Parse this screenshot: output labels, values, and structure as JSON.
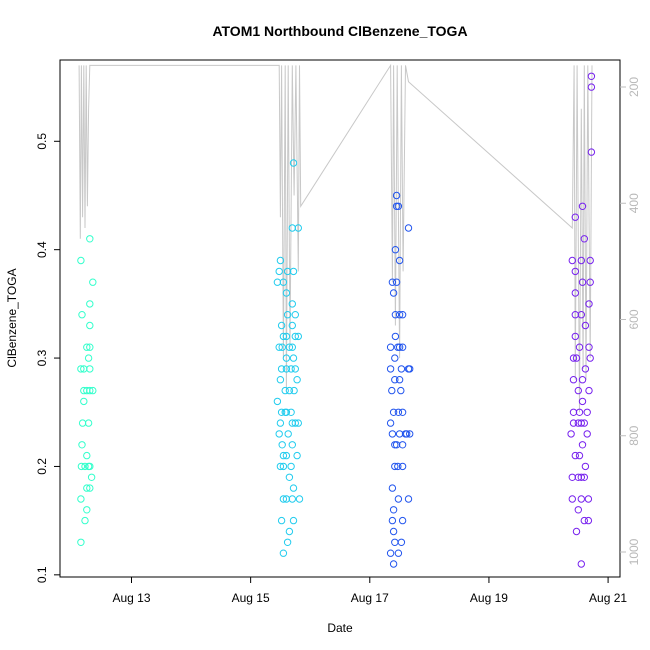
{
  "chart_data": {
    "type": "scatter",
    "title": "ATOM1 Northbound ClBenzene_TOGA",
    "xlabel": "Date",
    "ylabel": "ClBenzene_TOGA",
    "x_unit": "days since 2016-08-12 00:00",
    "xlim": [
      11.8,
      21.2
    ],
    "ylim": [
      0.098,
      0.575
    ],
    "x_ticks": [
      {
        "value": 13,
        "label": "Aug 13"
      },
      {
        "value": 15,
        "label": "Aug 15"
      },
      {
        "value": 17,
        "label": "Aug 17"
      },
      {
        "value": 19,
        "label": "Aug 19"
      },
      {
        "value": 21,
        "label": "Aug 21"
      }
    ],
    "y_ticks": [
      {
        "value": 0.1,
        "label": "0.1"
      },
      {
        "value": 0.2,
        "label": "0.2"
      },
      {
        "value": 0.3,
        "label": "0.3"
      },
      {
        "value": 0.4,
        "label": "0.4"
      },
      {
        "value": 0.5,
        "label": "0.5"
      }
    ],
    "y2_ticks": [
      {
        "value": 200,
        "label": "200"
      },
      {
        "value": 400,
        "label": "400"
      },
      {
        "value": 600,
        "label": "600"
      },
      {
        "value": 800,
        "label": "800"
      },
      {
        "value": 1000,
        "label": "1000"
      }
    ],
    "y2_reversed": true,
    "y2_color": "#bebebe",
    "point_color_scale": [
      "#00ffff",
      "#8000ff"
    ],
    "grid": false,
    "legend": "none",
    "series": [
      {
        "color": "#33ffcc",
        "points": [
          [
            12.15,
            0.13
          ],
          [
            12.15,
            0.17
          ],
          [
            12.16,
            0.2
          ],
          [
            12.17,
            0.22
          ],
          [
            12.18,
            0.24
          ],
          [
            12.2,
            0.26
          ],
          [
            12.2,
            0.27
          ],
          [
            12.15,
            0.29
          ],
          [
            12.2,
            0.29
          ],
          [
            12.17,
            0.34
          ],
          [
            12.15,
            0.39
          ],
          [
            12.25,
            0.16
          ],
          [
            12.3,
            0.2
          ],
          [
            12.22,
            0.2
          ],
          [
            12.25,
            0.18
          ],
          [
            12.3,
            0.18
          ],
          [
            12.25,
            0.21
          ],
          [
            12.25,
            0.27
          ],
          [
            12.3,
            0.27
          ],
          [
            12.25,
            0.31
          ],
          [
            12.3,
            0.31
          ],
          [
            12.28,
            0.24
          ],
          [
            12.3,
            0.29
          ],
          [
            12.28,
            0.3
          ],
          [
            12.3,
            0.33
          ],
          [
            12.3,
            0.35
          ],
          [
            12.35,
            0.27
          ],
          [
            12.33,
            0.19
          ],
          [
            12.35,
            0.37
          ],
          [
            12.3,
            0.41
          ],
          [
            12.22,
            0.15
          ],
          [
            12.28,
            0.2
          ]
        ]
      },
      {
        "color": "#22ccee",
        "points": [
          [
            15.45,
            0.26
          ],
          [
            15.45,
            0.37
          ],
          [
            15.48,
            0.31
          ],
          [
            15.48,
            0.38
          ],
          [
            15.5,
            0.39
          ],
          [
            15.52,
            0.33
          ],
          [
            15.55,
            0.37
          ],
          [
            15.5,
            0.28
          ],
          [
            15.52,
            0.29
          ],
          [
            15.53,
            0.31
          ],
          [
            15.55,
            0.32
          ],
          [
            15.5,
            0.24
          ],
          [
            15.52,
            0.25
          ],
          [
            15.55,
            0.21
          ],
          [
            15.53,
            0.22
          ],
          [
            15.5,
            0.2
          ],
          [
            15.55,
            0.2
          ],
          [
            15.55,
            0.17
          ],
          [
            15.52,
            0.15
          ],
          [
            15.55,
            0.12
          ],
          [
            15.58,
            0.27
          ],
          [
            15.6,
            0.29
          ],
          [
            15.6,
            0.3
          ],
          [
            15.6,
            0.32
          ],
          [
            15.62,
            0.34
          ],
          [
            15.6,
            0.36
          ],
          [
            15.62,
            0.38
          ],
          [
            15.6,
            0.25
          ],
          [
            15.63,
            0.23
          ],
          [
            15.6,
            0.21
          ],
          [
            15.65,
            0.19
          ],
          [
            15.6,
            0.17
          ],
          [
            15.62,
            0.13
          ],
          [
            15.65,
            0.14
          ],
          [
            15.68,
            0.29
          ],
          [
            15.7,
            0.31
          ],
          [
            15.7,
            0.33
          ],
          [
            15.7,
            0.35
          ],
          [
            15.72,
            0.38
          ],
          [
            15.7,
            0.42
          ],
          [
            15.72,
            0.48
          ],
          [
            15.68,
            0.25
          ],
          [
            15.7,
            0.24
          ],
          [
            15.7,
            0.22
          ],
          [
            15.68,
            0.2
          ],
          [
            15.72,
            0.18
          ],
          [
            15.7,
            0.17
          ],
          [
            15.72,
            0.15
          ],
          [
            15.75,
            0.29
          ],
          [
            15.75,
            0.32
          ],
          [
            15.75,
            0.34
          ],
          [
            15.73,
            0.27
          ],
          [
            15.75,
            0.24
          ],
          [
            15.78,
            0.28
          ],
          [
            15.8,
            0.32
          ],
          [
            15.8,
            0.42
          ],
          [
            15.8,
            0.24
          ],
          [
            15.82,
            0.17
          ],
          [
            15.78,
            0.21
          ],
          [
            15.72,
            0.3
          ],
          [
            15.65,
            0.27
          ],
          [
            15.58,
            0.25
          ],
          [
            15.48,
            0.23
          ],
          [
            15.65,
            0.31
          ]
        ]
      },
      {
        "color": "#2255ee",
        "points": [
          [
            17.35,
            0.12
          ],
          [
            17.38,
            0.15
          ],
          [
            17.38,
            0.18
          ],
          [
            17.35,
            0.24
          ],
          [
            17.38,
            0.23
          ],
          [
            17.37,
            0.27
          ],
          [
            17.35,
            0.29
          ],
          [
            17.35,
            0.31
          ],
          [
            17.38,
            0.37
          ],
          [
            17.4,
            0.36
          ],
          [
            17.4,
            0.11
          ],
          [
            17.42,
            0.13
          ],
          [
            17.4,
            0.14
          ],
          [
            17.4,
            0.16
          ],
          [
            17.42,
            0.2
          ],
          [
            17.42,
            0.22
          ],
          [
            17.4,
            0.25
          ],
          [
            17.42,
            0.28
          ],
          [
            17.42,
            0.3
          ],
          [
            17.43,
            0.32
          ],
          [
            17.43,
            0.34
          ],
          [
            17.45,
            0.37
          ],
          [
            17.43,
            0.4
          ],
          [
            17.45,
            0.44
          ],
          [
            17.45,
            0.45
          ],
          [
            17.48,
            0.12
          ],
          [
            17.48,
            0.17
          ],
          [
            17.47,
            0.2
          ],
          [
            17.5,
            0.23
          ],
          [
            17.48,
            0.25
          ],
          [
            17.5,
            0.28
          ],
          [
            17.47,
            0.31
          ],
          [
            17.5,
            0.34
          ],
          [
            17.5,
            0.39
          ],
          [
            17.48,
            0.44
          ],
          [
            17.53,
            0.13
          ],
          [
            17.55,
            0.15
          ],
          [
            17.55,
            0.2
          ],
          [
            17.55,
            0.22
          ],
          [
            17.55,
            0.25
          ],
          [
            17.53,
            0.29
          ],
          [
            17.55,
            0.31
          ],
          [
            17.55,
            0.34
          ],
          [
            17.6,
            0.23
          ],
          [
            17.62,
            0.23
          ],
          [
            17.65,
            0.17
          ],
          [
            17.65,
            0.29
          ],
          [
            17.65,
            0.42
          ],
          [
            17.67,
            0.23
          ],
          [
            17.67,
            0.29
          ],
          [
            17.52,
            0.27
          ],
          [
            17.45,
            0.22
          ],
          [
            17.5,
            0.31
          ]
        ]
      },
      {
        "color": "#7722ee",
        "points": [
          [
            20.38,
            0.23
          ],
          [
            20.4,
            0.19
          ],
          [
            20.4,
            0.17
          ],
          [
            20.42,
            0.25
          ],
          [
            20.42,
            0.24
          ],
          [
            20.42,
            0.28
          ],
          [
            20.42,
            0.3
          ],
          [
            20.4,
            0.39
          ],
          [
            20.45,
            0.32
          ],
          [
            20.45,
            0.34
          ],
          [
            20.45,
            0.36
          ],
          [
            20.45,
            0.38
          ],
          [
            20.45,
            0.43
          ],
          [
            20.47,
            0.14
          ],
          [
            20.47,
            0.3
          ],
          [
            20.45,
            0.21
          ],
          [
            20.5,
            0.16
          ],
          [
            20.5,
            0.19
          ],
          [
            20.52,
            0.21
          ],
          [
            20.5,
            0.24
          ],
          [
            20.52,
            0.25
          ],
          [
            20.5,
            0.27
          ],
          [
            20.55,
            0.11
          ],
          [
            20.55,
            0.17
          ],
          [
            20.55,
            0.19
          ],
          [
            20.57,
            0.22
          ],
          [
            20.55,
            0.24
          ],
          [
            20.57,
            0.26
          ],
          [
            20.57,
            0.28
          ],
          [
            20.55,
            0.34
          ],
          [
            20.57,
            0.37
          ],
          [
            20.55,
            0.39
          ],
          [
            20.57,
            0.44
          ],
          [
            20.6,
            0.15
          ],
          [
            20.6,
            0.19
          ],
          [
            20.6,
            0.24
          ],
          [
            20.62,
            0.29
          ],
          [
            20.62,
            0.33
          ],
          [
            20.6,
            0.41
          ],
          [
            20.65,
            0.23
          ],
          [
            20.65,
            0.25
          ],
          [
            20.67,
            0.17
          ],
          [
            20.67,
            0.15
          ],
          [
            20.68,
            0.31
          ],
          [
            20.68,
            0.35
          ],
          [
            20.7,
            0.37
          ],
          [
            20.7,
            0.39
          ],
          [
            20.72,
            0.49
          ],
          [
            20.72,
            0.55
          ],
          [
            20.72,
            0.56
          ],
          [
            20.68,
            0.27
          ],
          [
            20.7,
            0.3
          ],
          [
            20.52,
            0.31
          ],
          [
            20.62,
            0.2
          ]
        ]
      }
    ]
  }
}
